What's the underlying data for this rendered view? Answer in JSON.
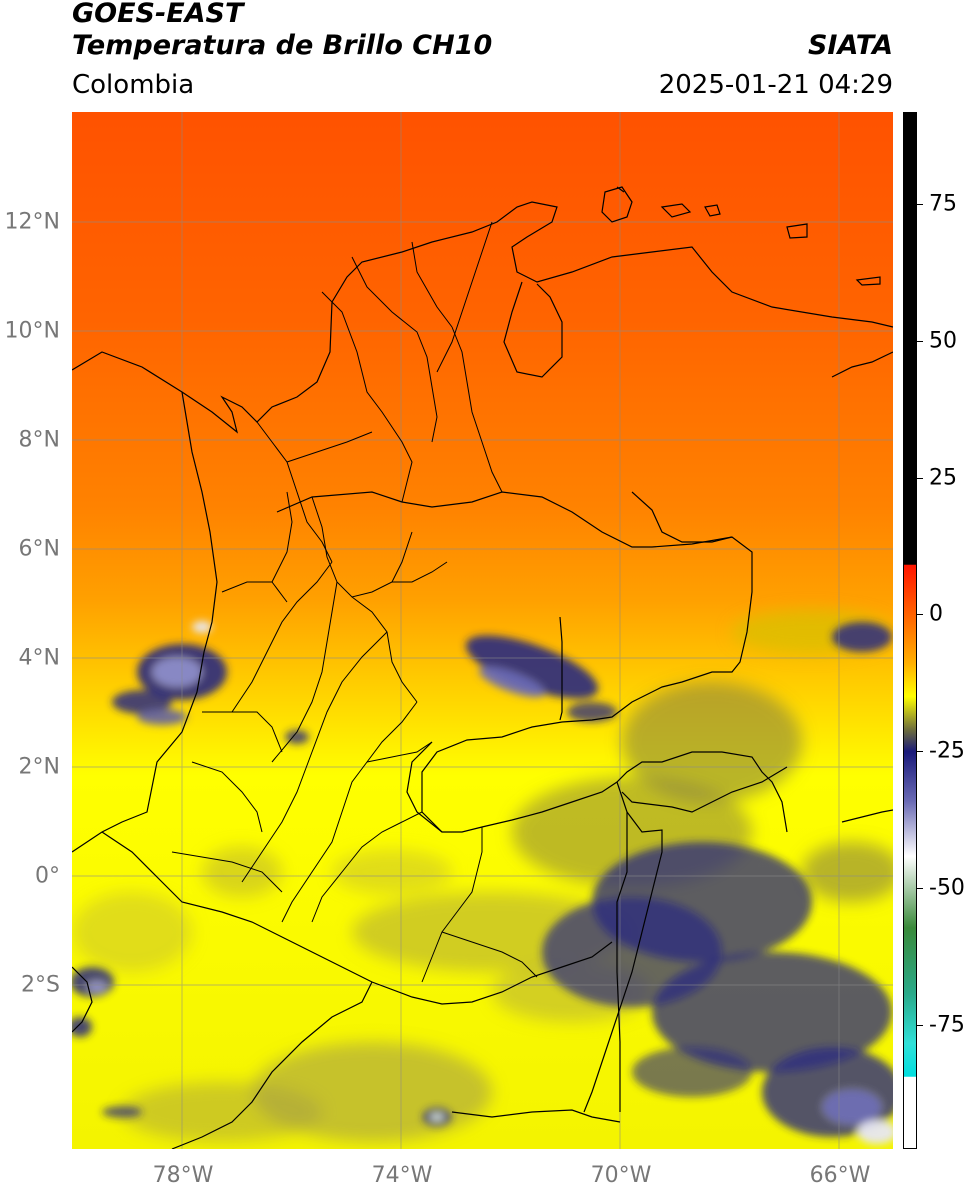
{
  "header": {
    "satellite": "GOES-EAST",
    "product": "Temperatura de Brillo CH10",
    "source": "SIATA",
    "region": "Colombia",
    "datetime": "2025-01-21 04:29"
  },
  "axes": {
    "lat_labels": [
      "12°N",
      "10°N",
      "8°N",
      "6°N",
      "4°N",
      "2°N",
      "0°",
      "2°S"
    ],
    "lon_labels": [
      "78°W",
      "74°W",
      "70°W",
      "66°W"
    ],
    "extent": {
      "lon_min": -80,
      "lon_max": -65,
      "lat_min": -5,
      "lat_max": 14
    }
  },
  "colorbar": {
    "ticks": [
      "75",
      "50",
      "25",
      "0",
      "-25",
      "-50",
      "-75"
    ],
    "stops": [
      {
        "value": 90,
        "color": "#000000"
      },
      {
        "value": 8,
        "color": "#000000"
      },
      {
        "value": 7.9,
        "color": "#ff1500"
      },
      {
        "value": -2,
        "color": "#ff6a00"
      },
      {
        "value": -10,
        "color": "#ffb000"
      },
      {
        "value": -16,
        "color": "#ffff00"
      },
      {
        "value": -22,
        "color": "#6e6e3c"
      },
      {
        "value": -26,
        "color": "#1a1a7a"
      },
      {
        "value": -35,
        "color": "#6a6ab4"
      },
      {
        "value": -45,
        "color": "#ffffff"
      },
      {
        "value": -58,
        "color": "#3a8a3a"
      },
      {
        "value": -70,
        "color": "#2aaa8a"
      },
      {
        "value": -79,
        "color": "#30e0d8"
      },
      {
        "value": -85,
        "color": "#00dede"
      },
      {
        "value": -85.1,
        "color": "#ffffff"
      },
      {
        "value": -98,
        "color": "#ffffff"
      }
    ]
  },
  "colors": {
    "warm": "#ff5a00",
    "mid": "#ffb000",
    "cold": "#ffff00",
    "convection": "#1a1a7a",
    "grid": "#8a8a8a",
    "borders": "#000000"
  }
}
